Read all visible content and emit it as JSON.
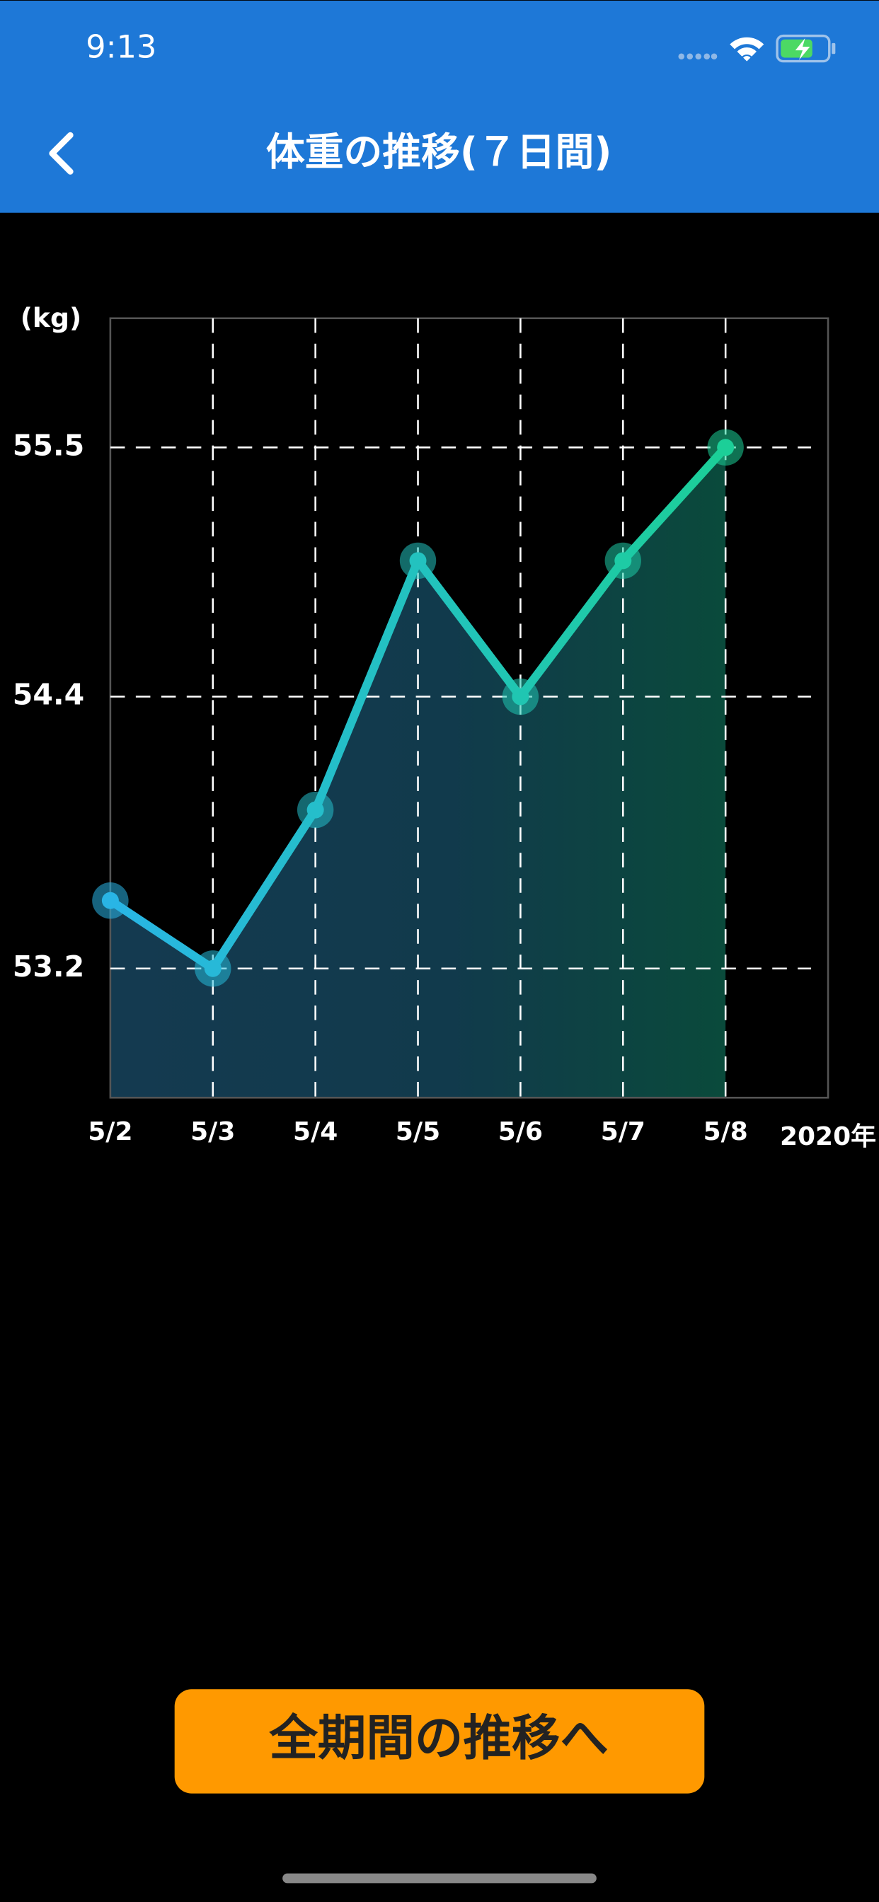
{
  "status_bar": {
    "time": "9:13"
  },
  "nav": {
    "title": "体重の推移(７日間)"
  },
  "chart_data": {
    "type": "line",
    "y_unit_label": "(kg)",
    "x_year_label": "2020年",
    "categories": [
      "5/2",
      "5/3",
      "5/4",
      "5/5",
      "5/6",
      "5/7",
      "5/8"
    ],
    "series": [
      {
        "color": "#29b5e5",
        "color_end": "#1ccf98",
        "values": [
          53.5,
          53.2,
          53.9,
          55.0,
          54.4,
          55.0,
          55.5
        ]
      }
    ],
    "ylim": [
      52.63,
      56.07
    ],
    "yticks": [
      53.2,
      54.4,
      55.5
    ],
    "grid": true,
    "area": true
  },
  "button": {
    "label": "全期間の推移へ"
  }
}
